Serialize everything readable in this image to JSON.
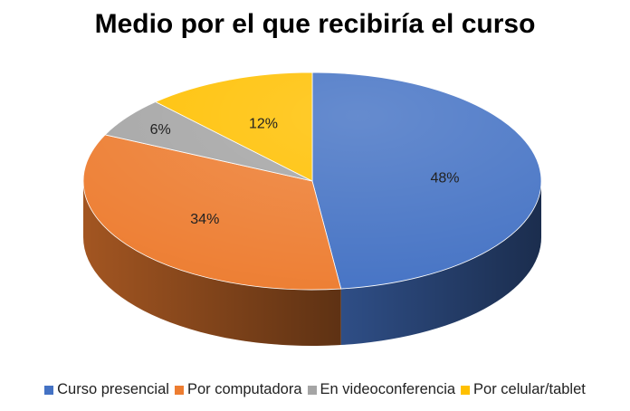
{
  "chart_data": {
    "type": "pie",
    "title": "Medio por el que recibiría el curso",
    "categories": [
      "Curso presencial",
      "Por computadora",
      "En videoconferencia",
      "Por celular/tablet"
    ],
    "values": [
      48,
      34,
      6,
      12
    ],
    "labels": [
      "48%",
      "34%",
      "6%",
      "12%"
    ],
    "colors": [
      "#4472c4",
      "#ed7d31",
      "#a5a5a5",
      "#ffc000"
    ],
    "legend_position": "bottom",
    "style": "3d"
  }
}
